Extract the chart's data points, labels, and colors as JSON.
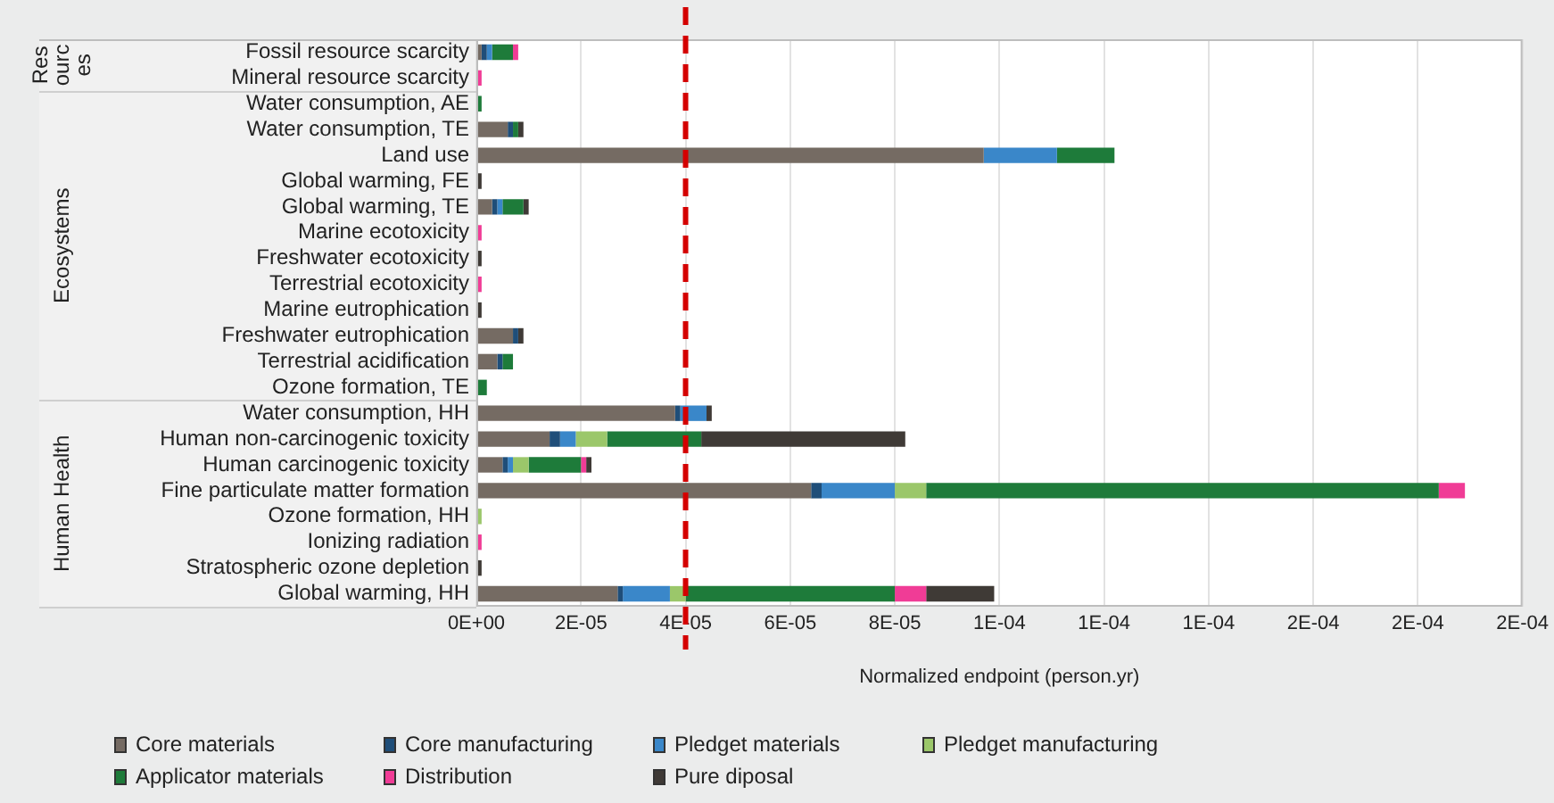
{
  "chart_data": {
    "type": "bar",
    "orientation": "horizontal",
    "stacked": true,
    "xlabel": "Normalized endpoint (person.yr)",
    "categories": [
      "Fossil resource scarcity",
      "Mineral resource scarcity",
      "Water consumption, AE",
      "Water consumption, TE",
      "Land use",
      "Global warming, FE",
      "Global warming, TE",
      "Marine ecotoxicity",
      "Freshwater ecotoxicity",
      "Terrestrial ecotoxicity",
      "Marine eutrophication",
      "Freshwater eutrophication",
      "Terrestrial acidification",
      "Ozone formation, TE",
      "Water consumption, HH",
      "Human non-carcinogenic toxicity",
      "Human carcinogenic toxicity",
      "Fine particulate matter formation",
      "Ozone formation, HH",
      "Ionizing radiation",
      "Stratospheric ozone depletion",
      "Global warming, HH"
    ],
    "series": [
      {
        "name": "Core materials",
        "color": "#756b63",
        "values": [
          1e-06,
          null,
          null,
          6e-06,
          9.7e-05,
          null,
          3e-06,
          null,
          null,
          null,
          null,
          7e-06,
          4e-06,
          null,
          3.8e-05,
          1.4e-05,
          5e-06,
          6.4e-05,
          null,
          null,
          null,
          2.7e-05
        ]
      },
      {
        "name": "Core manufacturing",
        "color": "#1f4e79",
        "values": [
          1e-06,
          null,
          null,
          1e-06,
          null,
          null,
          1e-06,
          null,
          null,
          null,
          null,
          1e-06,
          1e-06,
          null,
          1e-06,
          2e-06,
          1e-06,
          2e-06,
          null,
          null,
          null,
          1e-06
        ]
      },
      {
        "name": "Pledget materials",
        "color": "#3a87c9",
        "values": [
          1e-06,
          null,
          null,
          null,
          1.4e-05,
          null,
          1e-06,
          null,
          null,
          null,
          null,
          null,
          null,
          null,
          5e-06,
          3e-06,
          1e-06,
          1.4e-05,
          null,
          null,
          null,
          9e-06
        ]
      },
      {
        "name": "Pledget manufacturing",
        "color": "#9bc76a",
        "values": [
          null,
          null,
          null,
          null,
          null,
          null,
          null,
          null,
          null,
          null,
          null,
          null,
          null,
          null,
          null,
          6e-06,
          3e-06,
          6e-06,
          1e-06,
          null,
          null,
          3e-06
        ]
      },
      {
        "name": "Applicator materials",
        "color": "#1e7b3a",
        "values": [
          4e-06,
          null,
          1e-06,
          1e-06,
          1.1e-05,
          null,
          4e-06,
          null,
          null,
          null,
          null,
          null,
          2e-06,
          2e-06,
          null,
          1.8e-05,
          1e-05,
          9.8e-05,
          null,
          null,
          null,
          4e-05
        ]
      },
      {
        "name": "Distribution",
        "color": "#f03c96",
        "values": [
          1e-06,
          1e-06,
          null,
          null,
          null,
          null,
          null,
          1e-06,
          null,
          1e-06,
          null,
          null,
          null,
          null,
          null,
          null,
          1e-06,
          5e-06,
          null,
          1e-06,
          null,
          6e-06
        ]
      },
      {
        "name": "Pure diposal",
        "color": "#3f3a36",
        "values": [
          null,
          null,
          null,
          1e-06,
          null,
          1e-06,
          1e-06,
          null,
          1e-06,
          null,
          1e-06,
          1e-06,
          null,
          null,
          1e-06,
          3.9e-05,
          1e-06,
          null,
          null,
          null,
          1e-06,
          1.3e-05
        ]
      }
    ],
    "xlim": [
      0,
      0.0002
    ],
    "xticks": [
      {
        "value": 0,
        "label": "0E+00"
      },
      {
        "value": 2e-05,
        "label": "2E-05"
      },
      {
        "value": 4e-05,
        "label": "4E-05"
      },
      {
        "value": 6e-05,
        "label": "6E-05"
      },
      {
        "value": 8e-05,
        "label": "8E-05"
      },
      {
        "value": 0.0001,
        "label": "1E-04"
      },
      {
        "value": 0.00012,
        "label": "1E-04"
      },
      {
        "value": 0.00014,
        "label": "1E-04"
      },
      {
        "value": 0.00016,
        "label": "2E-04"
      },
      {
        "value": 0.00018,
        "label": "2E-04"
      },
      {
        "value": 0.0002,
        "label": "2E-04"
      }
    ],
    "ref_lines": [
      {
        "axis": "x",
        "value": 4e-05,
        "color": "#d40000",
        "line_style": "dashed"
      }
    ],
    "annotations": [
      "Resources",
      "Ecosystems",
      "Human Health"
    ],
    "grid": "x",
    "legend": "bottom left"
  }
}
